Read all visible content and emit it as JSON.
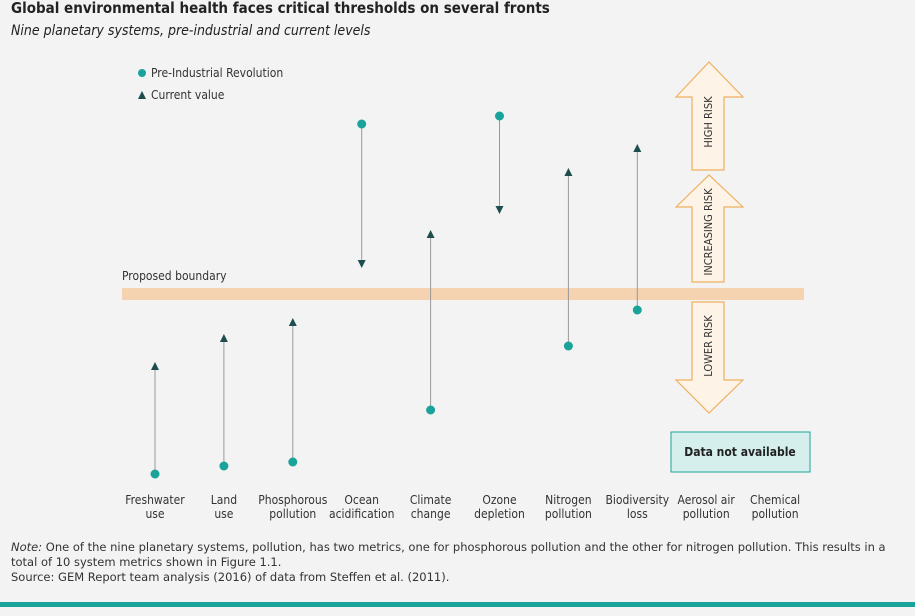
{
  "chart_data": {
    "type": "dumbbell",
    "title": "Global environmental health faces critical thresholds on several fronts",
    "subtitle": "Nine planetary systems, pre-industrial and current levels",
    "categories": [
      [
        "Freshwater",
        "use"
      ],
      [
        "Land",
        "use"
      ],
      [
        "Phosphorous",
        "pollution"
      ],
      [
        "Ocean",
        "acidification"
      ],
      [
        "Climate",
        "change"
      ],
      [
        "Ozone",
        "depletion"
      ],
      [
        "Nitrogen",
        "pollution"
      ],
      [
        "Biodiversity",
        "loss"
      ],
      [
        "Aerosol air",
        "pollution"
      ],
      [
        "Chemical",
        "pollution"
      ]
    ],
    "series": [
      {
        "name": "Pre-Industrial Revolution",
        "color": "#1aa39a",
        "values": [
          4,
          6,
          7,
          91.5,
          20,
          93.5,
          36,
          45,
          null,
          null
        ]
      },
      {
        "name": "Current value",
        "color": "#1e4d4d",
        "values": [
          31,
          38,
          42,
          56.5,
          64,
          70,
          79.5,
          85.5,
          null,
          null
        ]
      }
    ],
    "ylim": [
      0,
      100
    ],
    "boundary": {
      "label": "Proposed boundary",
      "value": 49,
      "color": "#f5d3b0"
    },
    "risk_labels": [
      "HIGH RISK",
      "INCREASING RISK",
      "LOWER RISK"
    ],
    "unavailable_label": "Data not available",
    "note_label": "Note:",
    "note": " One of the nine planetary systems, pollution, has two metrics, one for phosphorous pollution and the other for nitrogen pollution. This results in a total of 10 system metrics shown in Figure 1.1.",
    "source": "Source: GEM Report team analysis (2016) of data from Steffen et al. (2011)."
  }
}
